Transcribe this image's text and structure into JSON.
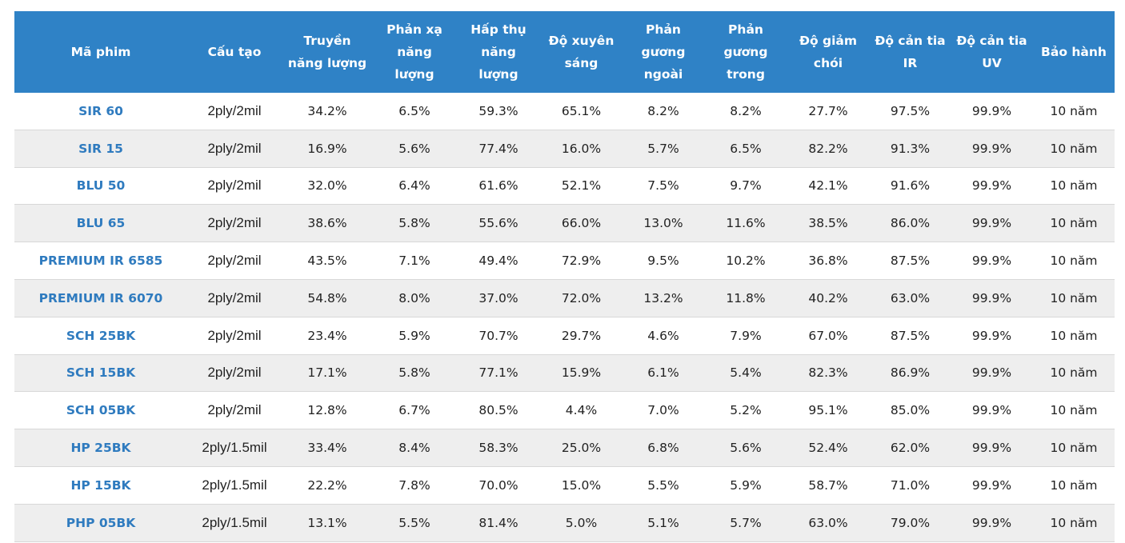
{
  "columns": [
    "Mã phim",
    "Cấu tạo",
    "Truyền năng lượng",
    "Phản xạ năng lượng",
    "Hấp thụ năng lượng",
    "Độ xuyên sáng",
    "Phản gương ngoài",
    "Phản gương trong",
    "Độ giảm chói",
    "Độ cản tia IR",
    "Độ cản tia UV",
    "Bảo hành"
  ],
  "rows": [
    [
      "SIR 60",
      "2ply/2mil",
      "34.2%",
      "6.5%",
      "59.3%",
      "65.1%",
      "8.2%",
      "8.2%",
      "27.7%",
      "97.5%",
      "99.9%",
      "10 năm"
    ],
    [
      "SIR 15",
      "2ply/2mil",
      "16.9%",
      "5.6%",
      "77.4%",
      "16.0%",
      "5.7%",
      "6.5%",
      "82.2%",
      "91.3%",
      "99.9%",
      "10 năm"
    ],
    [
      "BLU 50",
      "2ply/2mil",
      "32.0%",
      "6.4%",
      "61.6%",
      "52.1%",
      "7.5%",
      "9.7%",
      "42.1%",
      "91.6%",
      "99.9%",
      "10 năm"
    ],
    [
      "BLU 65",
      "2ply/2mil",
      "38.6%",
      "5.8%",
      "55.6%",
      "66.0%",
      "13.0%",
      "11.6%",
      "38.5%",
      "86.0%",
      "99.9%",
      "10 năm"
    ],
    [
      "PREMIUM IR 6585",
      "2ply/2mil",
      "43.5%",
      "7.1%",
      "49.4%",
      "72.9%",
      "9.5%",
      "10.2%",
      "36.8%",
      "87.5%",
      "99.9%",
      "10 năm"
    ],
    [
      "PREMIUM IR 6070",
      "2ply/2mil",
      "54.8%",
      "8.0%",
      "37.0%",
      "72.0%",
      "13.2%",
      "11.8%",
      "40.2%",
      "63.0%",
      "99.9%",
      "10 năm"
    ],
    [
      "SCH 25BK",
      "2ply/2mil",
      "23.4%",
      "5.9%",
      "70.7%",
      "29.7%",
      "4.6%",
      "7.9%",
      "67.0%",
      "87.5%",
      "99.9%",
      "10 năm"
    ],
    [
      "SCH 15BK",
      "2ply/2mil",
      "17.1%",
      "5.8%",
      "77.1%",
      "15.9%",
      "6.1%",
      "5.4%",
      "82.3%",
      "86.9%",
      "99.9%",
      "10 năm"
    ],
    [
      "SCH 05BK",
      "2ply/2mil",
      "12.8%",
      "6.7%",
      "80.5%",
      "4.4%",
      "7.0%",
      "5.2%",
      "95.1%",
      "85.0%",
      "99.9%",
      "10 năm"
    ],
    [
      "HP 25BK",
      "2ply/1.5mil",
      "33.4%",
      "8.4%",
      "58.3%",
      "25.0%",
      "6.8%",
      "5.6%",
      "52.4%",
      "62.0%",
      "99.9%",
      "10 năm"
    ],
    [
      "HP 15BK",
      "2ply/1.5mil",
      "22.2%",
      "7.8%",
      "70.0%",
      "15.0%",
      "5.5%",
      "5.9%",
      "58.7%",
      "71.0%",
      "99.9%",
      "10 năm"
    ],
    [
      "PHP 05BK",
      "2ply/1.5mil",
      "13.1%",
      "5.5%",
      "81.4%",
      "5.0%",
      "5.1%",
      "5.7%",
      "63.0%",
      "79.0%",
      "99.9%",
      "10 năm"
    ]
  ],
  "colors": {
    "header_bg": "#2f82c6",
    "code_text": "#2f7bbf",
    "stripe": "#eeeeee"
  }
}
